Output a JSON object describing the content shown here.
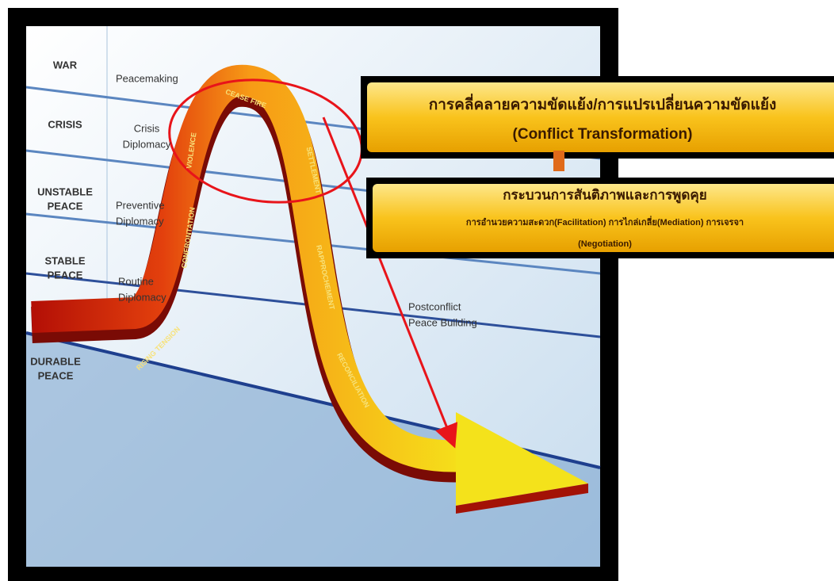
{
  "levels": [
    [
      "WAR"
    ],
    [
      "CRISIS"
    ],
    [
      "UNSTABLE",
      "PEACE"
    ],
    [
      "STABLE",
      "PEACE"
    ],
    [
      "DURABLE",
      "PEACE"
    ]
  ],
  "stages": [
    [
      "Peacemaking"
    ],
    [
      "Crisis",
      "Diplomacy"
    ],
    [
      "Preventive",
      "Diplomacy"
    ],
    [
      "Routine",
      "Diplomacy"
    ],
    [
      "Postconflict",
      "Peace Building"
    ]
  ],
  "ribbon_labels": [
    "RISING TENSION",
    "CONFRONTATION",
    "VIOLENCE",
    "CEASE FIRE",
    "SETTLEMENT",
    "RAPPROCHEMENT",
    "RECONCILIATION"
  ],
  "boxes": [
    {
      "title": "การคลี่คลายความขัดแย้ง/การแปรเปลี่ยนความขัดแย้ง",
      "subtitle": "(Conflict Transformation)"
    },
    {
      "title": "กระบวนการสันติภาพและการพูดคุย",
      "subtitle": "การอำนวยความสะดวก(Facilitation) การไกล่เกลี่ย(Mediation) การเจรจา",
      "subtitle2": "(Negotiation)"
    }
  ]
}
